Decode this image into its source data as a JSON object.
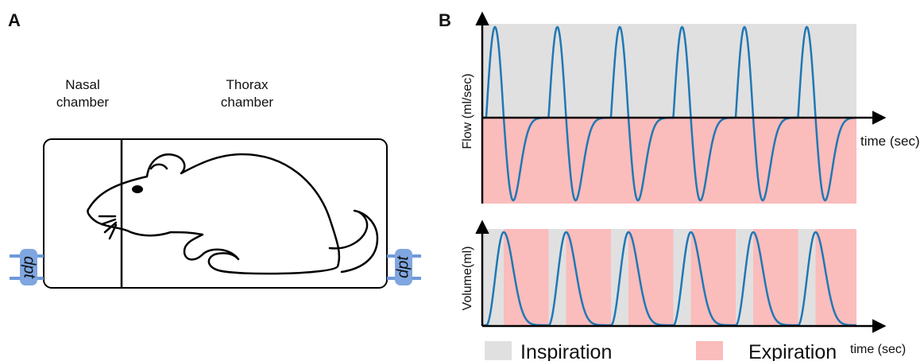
{
  "panels": [
    {
      "label": "A",
      "chambers": [
        {
          "label_lines": [
            "Nasal",
            "chamber"
          ]
        },
        {
          "label_lines": [
            "Thorax",
            "chamber"
          ]
        }
      ],
      "sensors": [
        "dpt",
        "dpt"
      ]
    },
    {
      "label": "B",
      "plots": [
        {
          "y_label": "Flow (ml/sec)",
          "x_label": "time (sec)"
        },
        {
          "y_label": "Volume(ml)",
          "x_label": "time (sec)"
        }
      ],
      "legend": [
        {
          "label": "Inspiration",
          "color": "#e0e0e0"
        },
        {
          "label": "Expiration",
          "color": "#fbbcbc"
        }
      ]
    }
  ]
}
